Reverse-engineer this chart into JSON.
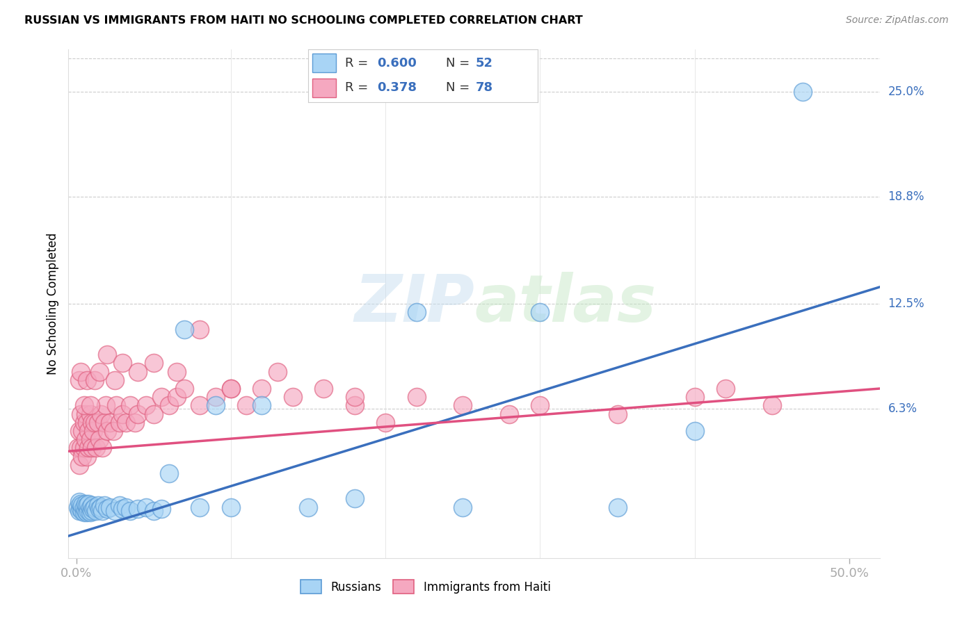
{
  "title": "RUSSIAN VS IMMIGRANTS FROM HAITI NO SCHOOLING COMPLETED CORRELATION CHART",
  "source": "Source: ZipAtlas.com",
  "ylabel": "No Schooling Completed",
  "ytick_labels": [
    "25.0%",
    "18.8%",
    "12.5%",
    "6.3%"
  ],
  "ytick_values": [
    0.25,
    0.188,
    0.125,
    0.063
  ],
  "xlim": [
    -0.005,
    0.52
  ],
  "ylim": [
    -0.025,
    0.275
  ],
  "legend_r_russian": "0.600",
  "legend_n_russian": "52",
  "legend_r_haiti": "0.378",
  "legend_n_haiti": "78",
  "color_russian_fill": "#a8d4f5",
  "color_russian_edge": "#5b9bd5",
  "color_russian_line": "#3a6fbd",
  "color_haiti_fill": "#f5a8c0",
  "color_haiti_edge": "#e06080",
  "color_haiti_line": "#e05080",
  "watermark_zip": "ZIP",
  "watermark_atlas": "atlas",
  "russian_x": [
    0.001,
    0.002,
    0.002,
    0.003,
    0.003,
    0.004,
    0.004,
    0.005,
    0.005,
    0.006,
    0.006,
    0.007,
    0.007,
    0.008,
    0.008,
    0.009,
    0.009,
    0.01,
    0.01,
    0.011,
    0.012,
    0.013,
    0.014,
    0.015,
    0.016,
    0.017,
    0.018,
    0.02,
    0.022,
    0.025,
    0.028,
    0.03,
    0.032,
    0.035,
    0.04,
    0.045,
    0.05,
    0.055,
    0.06,
    0.07,
    0.08,
    0.09,
    0.1,
    0.12,
    0.15,
    0.18,
    0.22,
    0.25,
    0.3,
    0.35,
    0.4,
    0.47
  ],
  "russian_y": [
    0.005,
    0.003,
    0.008,
    0.004,
    0.007,
    0.003,
    0.006,
    0.002,
    0.005,
    0.003,
    0.007,
    0.002,
    0.006,
    0.003,
    0.007,
    0.002,
    0.005,
    0.003,
    0.006,
    0.004,
    0.005,
    0.003,
    0.006,
    0.004,
    0.005,
    0.003,
    0.006,
    0.004,
    0.005,
    0.003,
    0.006,
    0.004,
    0.005,
    0.003,
    0.004,
    0.005,
    0.003,
    0.004,
    0.025,
    0.11,
    0.005,
    0.065,
    0.005,
    0.065,
    0.005,
    0.01,
    0.12,
    0.005,
    0.12,
    0.005,
    0.05,
    0.25
  ],
  "haiti_x": [
    0.001,
    0.002,
    0.002,
    0.003,
    0.003,
    0.004,
    0.004,
    0.005,
    0.005,
    0.006,
    0.006,
    0.007,
    0.007,
    0.008,
    0.008,
    0.009,
    0.009,
    0.01,
    0.01,
    0.011,
    0.012,
    0.013,
    0.014,
    0.015,
    0.016,
    0.017,
    0.018,
    0.019,
    0.02,
    0.022,
    0.024,
    0.026,
    0.028,
    0.03,
    0.032,
    0.035,
    0.038,
    0.04,
    0.045,
    0.05,
    0.055,
    0.06,
    0.065,
    0.07,
    0.08,
    0.09,
    0.1,
    0.11,
    0.12,
    0.14,
    0.16,
    0.18,
    0.2,
    0.22,
    0.25,
    0.28,
    0.3,
    0.35,
    0.4,
    0.42,
    0.002,
    0.003,
    0.005,
    0.007,
    0.009,
    0.012,
    0.015,
    0.02,
    0.025,
    0.03,
    0.04,
    0.05,
    0.065,
    0.08,
    0.1,
    0.13,
    0.18,
    0.45
  ],
  "haiti_y": [
    0.04,
    0.05,
    0.03,
    0.06,
    0.04,
    0.05,
    0.035,
    0.055,
    0.04,
    0.06,
    0.045,
    0.055,
    0.035,
    0.05,
    0.04,
    0.06,
    0.045,
    0.055,
    0.04,
    0.05,
    0.055,
    0.04,
    0.055,
    0.045,
    0.06,
    0.04,
    0.055,
    0.065,
    0.05,
    0.055,
    0.05,
    0.065,
    0.055,
    0.06,
    0.055,
    0.065,
    0.055,
    0.06,
    0.065,
    0.06,
    0.07,
    0.065,
    0.07,
    0.075,
    0.065,
    0.07,
    0.075,
    0.065,
    0.075,
    0.07,
    0.075,
    0.065,
    0.055,
    0.07,
    0.065,
    0.06,
    0.065,
    0.06,
    0.07,
    0.075,
    0.08,
    0.085,
    0.065,
    0.08,
    0.065,
    0.08,
    0.085,
    0.095,
    0.08,
    0.09,
    0.085,
    0.09,
    0.085,
    0.11,
    0.075,
    0.085,
    0.07,
    0.065
  ],
  "russian_line_x": [
    -0.005,
    0.52
  ],
  "russian_line_y": [
    -0.012,
    0.135
  ],
  "haiti_line_x": [
    -0.005,
    0.52
  ],
  "haiti_line_y": [
    0.038,
    0.075
  ]
}
